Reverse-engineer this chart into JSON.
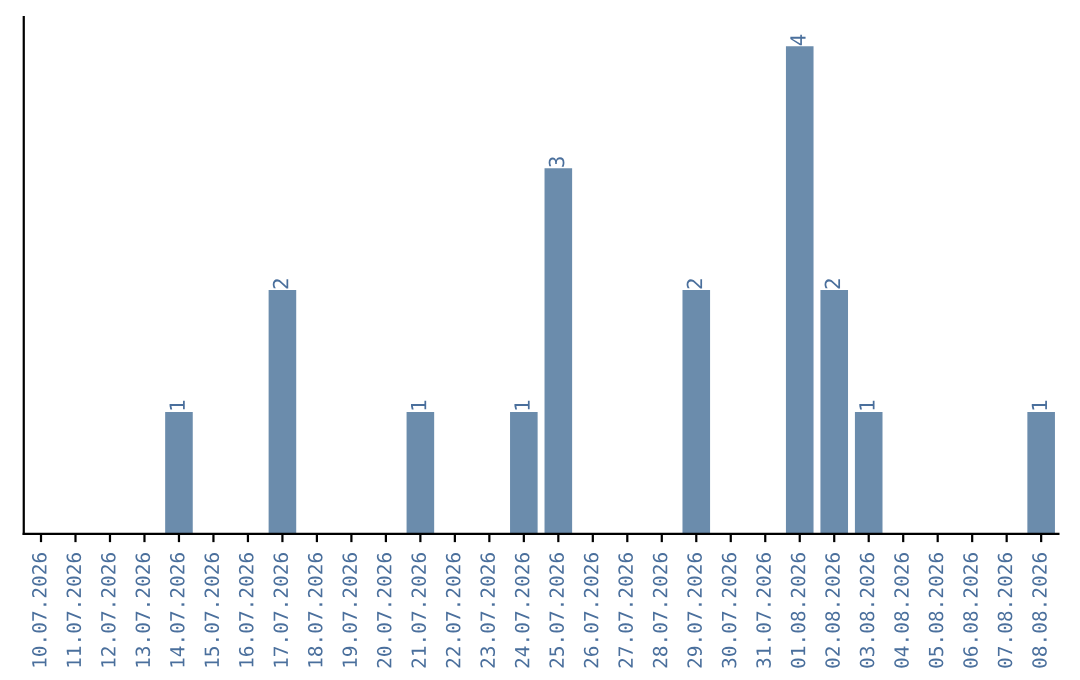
{
  "chart_data": {
    "type": "bar",
    "categories": [
      "10.07.2026",
      "11.07.2026",
      "12.07.2026",
      "13.07.2026",
      "14.07.2026",
      "15.07.2026",
      "16.07.2026",
      "17.07.2026",
      "18.07.2026",
      "19.07.2026",
      "20.07.2026",
      "21.07.2026",
      "22.07.2026",
      "23.07.2026",
      "24.07.2026",
      "25.07.2026",
      "26.07.2026",
      "27.07.2026",
      "28.07.2026",
      "29.07.2026",
      "30.07.2026",
      "31.07.2026",
      "01.08.2026",
      "02.08.2026",
      "03.08.2026",
      "04.08.2026",
      "05.08.2026",
      "06.08.2026",
      "07.08.2026",
      "08.08.2026"
    ],
    "values": [
      0,
      0,
      0,
      0,
      1,
      0,
      0,
      2,
      0,
      0,
      0,
      1,
      0,
      0,
      1,
      3,
      0,
      0,
      0,
      2,
      0,
      0,
      4,
      2,
      1,
      0,
      0,
      0,
      0,
      1
    ],
    "value_labels": [
      null,
      null,
      null,
      null,
      "1",
      null,
      null,
      "2",
      null,
      null,
      null,
      "1",
      null,
      null,
      "1",
      "3",
      null,
      null,
      null,
      "2",
      null,
      null,
      "4",
      "2",
      "1",
      null,
      null,
      null,
      null,
      "1"
    ],
    "color": "#6b8cac",
    "tick_labels": "x",
    "grid": false
  }
}
